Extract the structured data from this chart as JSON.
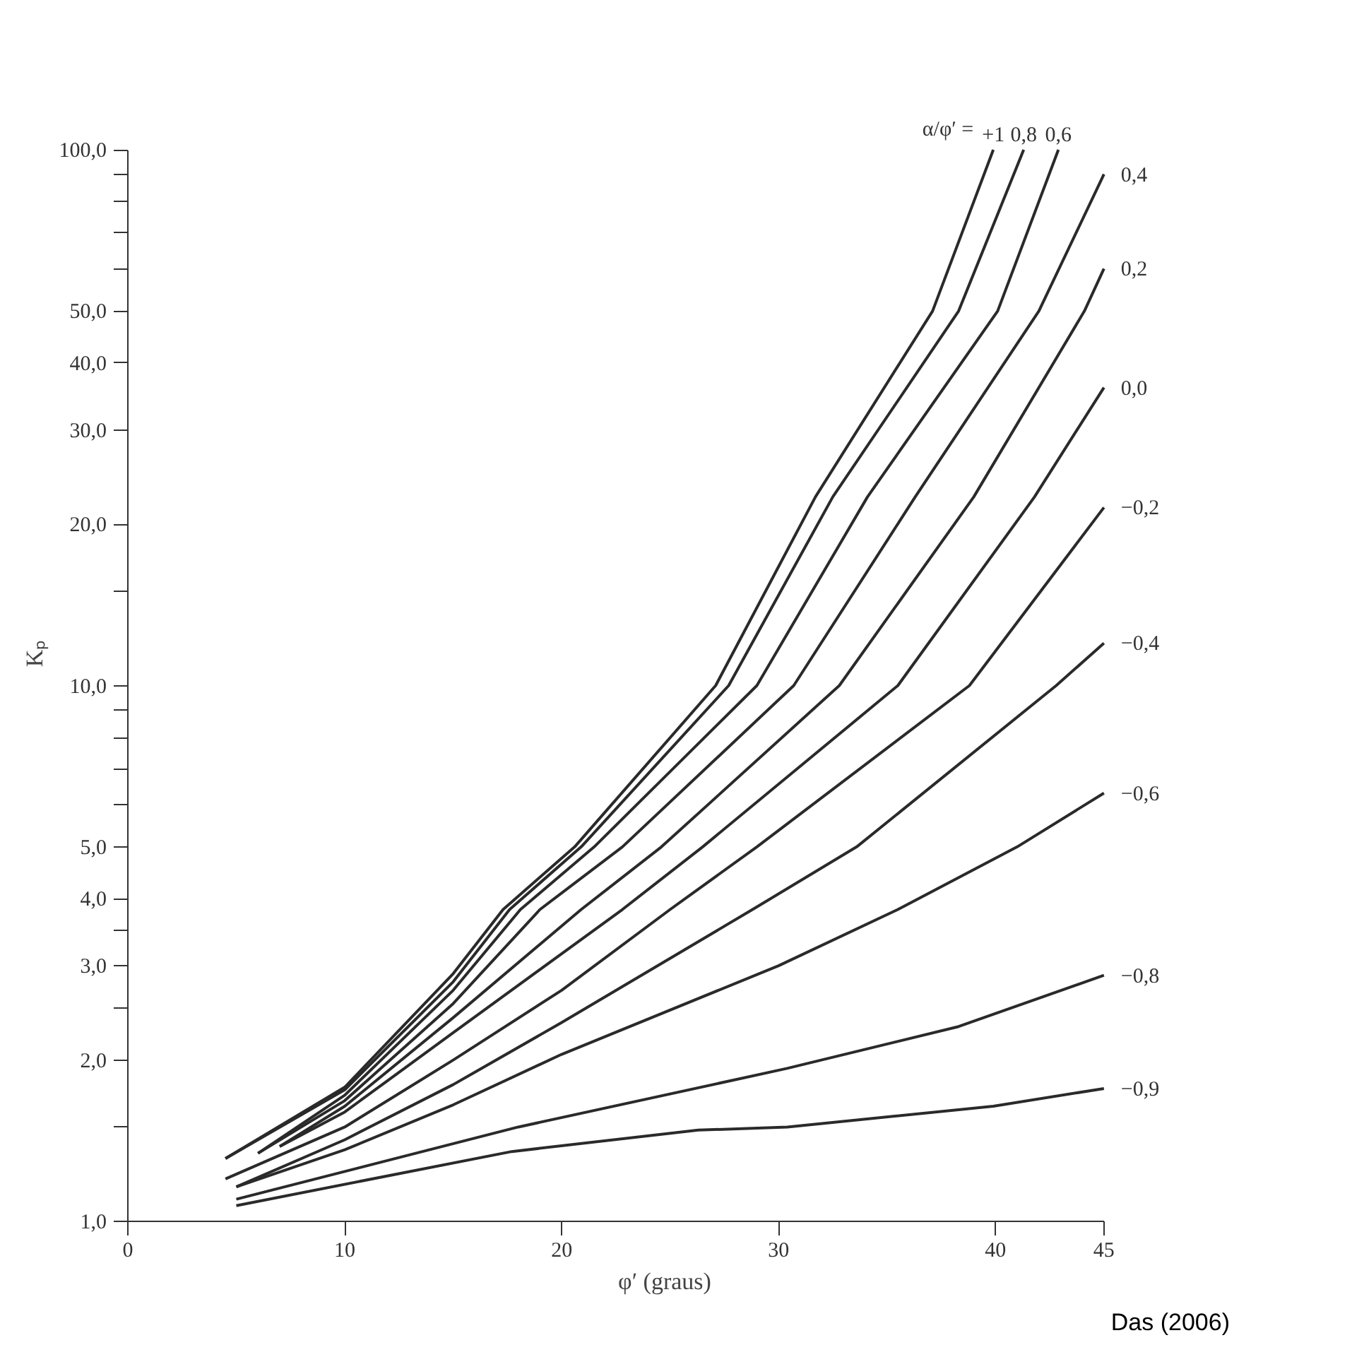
{
  "chart_data": {
    "type": "line",
    "xlabel": "φ′ (graus)",
    "ylabel": "Kₚ",
    "legend_title": "α/φ′ =",
    "log": "y",
    "grid": false,
    "line_style": "solid",
    "marker": "none",
    "xlim": [
      0,
      45
    ],
    "ylim": [
      1,
      100
    ],
    "xticks": [
      0,
      10,
      20,
      30,
      40,
      45
    ],
    "yticks": [
      {
        "value": 1,
        "label": "1,0"
      },
      {
        "value": 1.5,
        "label": null
      },
      {
        "value": 2,
        "label": "2,0"
      },
      {
        "value": 2.5,
        "label": null
      },
      {
        "value": 3,
        "label": "3,0"
      },
      {
        "value": 3.5,
        "label": null
      },
      {
        "value": 4,
        "label": "4,0"
      },
      {
        "value": 5,
        "label": "5,0"
      },
      {
        "value": 6,
        "label": null
      },
      {
        "value": 7,
        "label": null
      },
      {
        "value": 8,
        "label": null
      },
      {
        "value": 9,
        "label": null
      },
      {
        "value": 10,
        "label": "10,0"
      },
      {
        "value": 15,
        "label": null
      },
      {
        "value": 20,
        "label": "20,0"
      },
      {
        "value": 30,
        "label": "30,0"
      },
      {
        "value": 40,
        "label": "40,0"
      },
      {
        "value": 50,
        "label": "50,0"
      },
      {
        "value": 60,
        "label": null
      },
      {
        "value": 70,
        "label": null
      },
      {
        "value": 80,
        "label": null
      },
      {
        "value": 90,
        "label": null
      },
      {
        "value": 100,
        "label": "100,0"
      }
    ],
    "series": [
      {
        "name": "+1",
        "color": "#2a2a2a",
        "x": [
          4.5,
          10,
          15,
          17.3,
          20.6,
          27.1,
          31.7,
          37.1,
          39.9
        ],
        "values": [
          1.31,
          1.78,
          2.9,
          3.82,
          5.0,
          10,
          22.5,
          50,
          100
        ]
      },
      {
        "name": "0,8",
        "color": "#2a2a2a",
        "x": [
          4.5,
          10,
          15,
          17.6,
          20.9,
          27.7,
          32.5,
          38.3,
          41.3
        ],
        "values": [
          1.31,
          1.76,
          2.8,
          3.82,
          5.0,
          10,
          22.5,
          50,
          100
        ]
      },
      {
        "name": "0,6",
        "color": "#2a2a2a",
        "x": [
          6,
          10,
          15,
          18.1,
          21.5,
          29,
          34.1,
          40.1,
          42.9
        ],
        "values": [
          1.34,
          1.72,
          2.7,
          3.82,
          5.0,
          10,
          22.5,
          50,
          100
        ]
      },
      {
        "name": "0,4",
        "color": "#2a2a2a",
        "x": [
          6,
          10,
          15,
          19,
          22.8,
          30.7,
          36.3,
          42,
          45
        ],
        "values": [
          1.34,
          1.68,
          2.55,
          3.82,
          5.0,
          10,
          22.5,
          50,
          90
        ]
      },
      {
        "name": "0,2",
        "color": "#2a2a2a",
        "x": [
          7,
          10,
          15,
          20.9,
          24.6,
          32.8,
          39,
          44.1,
          45
        ],
        "values": [
          1.38,
          1.64,
          2.4,
          3.82,
          5.0,
          10,
          22.5,
          50,
          60
        ]
      },
      {
        "name": "0,0",
        "color": "#2a2a2a",
        "x": [
          7,
          10,
          15,
          22.8,
          26.5,
          35.5,
          41.8,
          45
        ],
        "values": [
          1.38,
          1.6,
          2.25,
          3.82,
          5.0,
          10,
          22.5,
          36
        ]
      },
      {
        "name": "−0,2",
        "color": "#2a2a2a",
        "x": [
          4.5,
          10,
          15,
          20,
          25,
          29,
          38.8,
          45
        ],
        "values": [
          1.2,
          1.5,
          2.0,
          2.7,
          3.82,
          5.0,
          10,
          21.5
        ]
      },
      {
        "name": "−0,4",
        "color": "#2a2a2a",
        "x": [
          5,
          10,
          15,
          20,
          28.8,
          33.6,
          42.8,
          45
        ],
        "values": [
          1.16,
          1.42,
          1.8,
          2.35,
          3.82,
          5.0,
          10,
          12
        ]
      },
      {
        "name": "−0,6",
        "color": "#2a2a2a",
        "x": [
          5,
          10,
          15,
          20,
          30,
          35.5,
          41,
          45
        ],
        "values": [
          1.16,
          1.36,
          1.65,
          2.05,
          3.0,
          3.82,
          5.0,
          6.3
        ]
      },
      {
        "name": "−0,8",
        "color": "#2a2a2a",
        "x": [
          5,
          18,
          30.4,
          38.3,
          45
        ],
        "values": [
          1.1,
          1.5,
          1.93,
          2.31,
          2.88
        ]
      },
      {
        "name": "−0,9",
        "color": "#2a2a2a",
        "x": [
          5,
          17.7,
          26.3,
          30.4,
          39.9,
          45
        ],
        "values": [
          1.07,
          1.35,
          1.48,
          1.5,
          1.64,
          1.77
        ]
      }
    ],
    "annotations": [
      "Das (2006)"
    ]
  }
}
